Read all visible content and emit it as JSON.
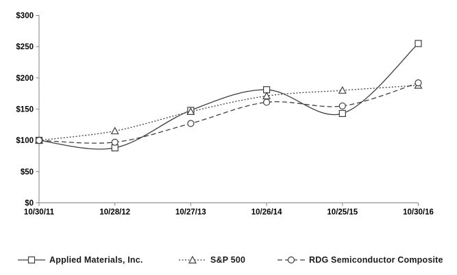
{
  "chart_data": {
    "type": "line",
    "title": "",
    "xlabel": "",
    "ylabel": "",
    "categories": [
      "10/30/11",
      "10/28/12",
      "10/27/13",
      "10/26/14",
      "10/25/15",
      "10/30/16"
    ],
    "series": [
      {
        "name": "Applied Materials, Inc.",
        "values": [
          100,
          88,
          148,
          181,
          143,
          255
        ],
        "line_style": "solid",
        "marker": "square"
      },
      {
        "name": "S&P 500",
        "values": [
          100,
          115,
          146,
          171,
          180,
          188
        ],
        "line_style": "dotted",
        "marker": "triangle"
      },
      {
        "name": "RDG Semiconductor Composite",
        "values": [
          100,
          97,
          127,
          161,
          155,
          192
        ],
        "line_style": "dashed",
        "marker": "circle"
      }
    ],
    "y_ticks": [
      "$0",
      "$50",
      "$100",
      "$150",
      "$200",
      "$250",
      "$300"
    ],
    "y_tick_values": [
      0,
      50,
      100,
      150,
      200,
      250,
      300
    ],
    "ylim": [
      0,
      300
    ],
    "grid": false,
    "legend_position": "bottom",
    "colors": {
      "line": "#3c3c3c",
      "axis": "#808080",
      "tick_label": "#000000",
      "marker_fill": "#ffffff",
      "background": "#ffffff"
    }
  }
}
